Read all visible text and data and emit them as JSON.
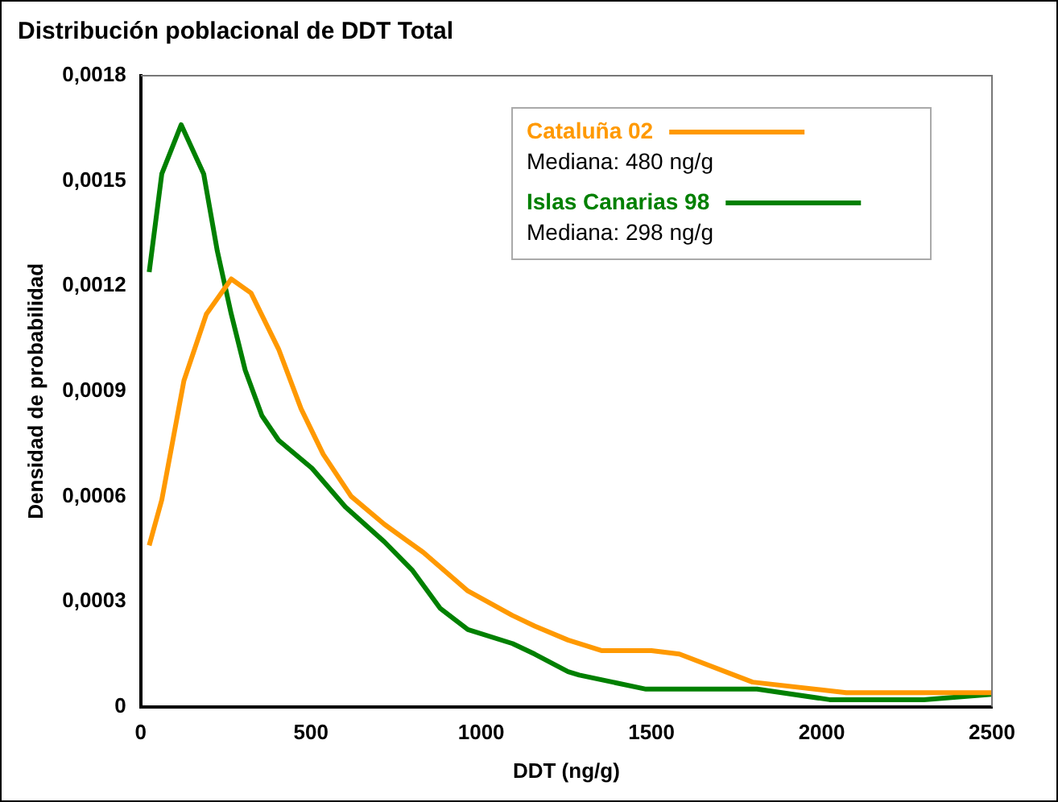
{
  "chart_data": {
    "type": "line",
    "title": "Distribución poblacional de DDT Total",
    "xlabel": "DDT (ng/g)",
    "ylabel": "Densidad de probabilidad",
    "xlim": [
      0,
      2500
    ],
    "xticks": [
      0,
      500,
      1000,
      1500,
      2000,
      2500
    ],
    "ylim": [
      0,
      0.0018
    ],
    "yticks": [
      {
        "value": 0,
        "label": "0"
      },
      {
        "value": 0.0003,
        "label": "0,0003"
      },
      {
        "value": 0.0006,
        "label": "0,0006"
      },
      {
        "value": 0.0009,
        "label": "0,0009"
      },
      {
        "value": 0.0012,
        "label": "0,0012"
      },
      {
        "value": 0.0015,
        "label": "0,0015"
      },
      {
        "value": 0.0018,
        "label": "0,0018"
      }
    ],
    "grid": false,
    "legend": "top right",
    "marker": "none",
    "line_style": "solid",
    "annotations": [
      "Mediana: 480 ng/g",
      "Mediana: 298 ng/g"
    ],
    "series": [
      {
        "name": "Cataluña 02",
        "color": "#ff9900",
        "x": [
          25,
          62,
          127,
          193,
          266,
          324,
          405,
          471,
          536,
          618,
          716,
          830,
          961,
          1092,
          1157,
          1255,
          1353,
          1500,
          1582,
          1797,
          2072,
          2500
        ],
        "values": [
          0.00046,
          0.00059,
          0.00093,
          0.00112,
          0.00122,
          0.00118,
          0.00102,
          0.00085,
          0.00072,
          0.0006,
          0.00052,
          0.00044,
          0.00033,
          0.00026,
          0.00023,
          0.00019,
          0.00016,
          0.00016,
          0.00015,
          7e-05,
          4e-05,
          4e-05
        ]
      },
      {
        "name": "Islas Canarias 98",
        "color": "#008000",
        "x": [
          25,
          62,
          119,
          185,
          225,
          266,
          307,
          356,
          405,
          503,
          601,
          716,
          797,
          880,
          961,
          1092,
          1157,
          1255,
          1288,
          1484,
          1810,
          2023,
          2300,
          2500
        ],
        "values": [
          0.00124,
          0.00152,
          0.00166,
          0.00152,
          0.0013,
          0.00112,
          0.00096,
          0.00083,
          0.00076,
          0.00068,
          0.00057,
          0.00047,
          0.00039,
          0.00028,
          0.00022,
          0.00018,
          0.00015,
          0.0001,
          9e-05,
          5e-05,
          5e-05,
          2e-05,
          2e-05,
          3.5e-05
        ]
      }
    ]
  }
}
